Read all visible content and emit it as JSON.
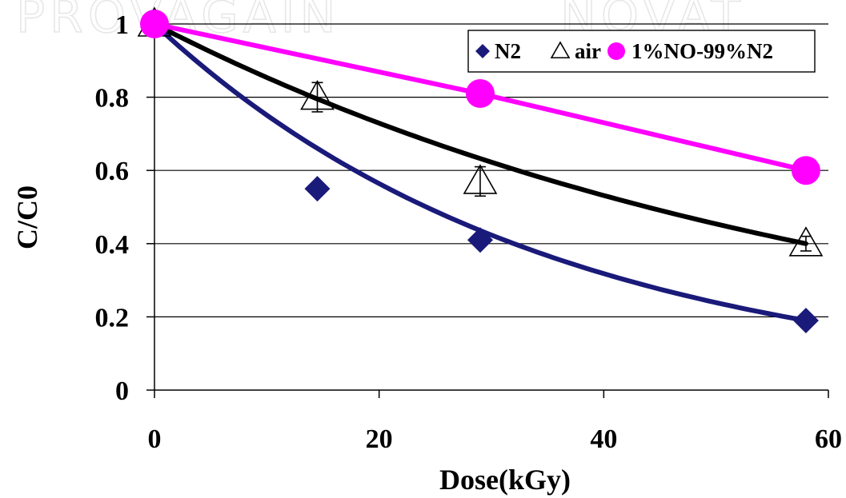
{
  "chart_data": {
    "type": "scatter",
    "title": "",
    "xlabel": "Dose(kGy)",
    "ylabel": "C/C0",
    "xlim": [
      0,
      60
    ],
    "ylim": [
      0,
      1
    ],
    "x_ticks": [
      "0",
      "20",
      "40",
      "60"
    ],
    "y_ticks": [
      "0",
      "0.2",
      "0.4",
      "0.6",
      "0.8",
      "1"
    ],
    "grid": "horizontal",
    "legend_position": "top-right",
    "series": [
      {
        "name": "N2",
        "marker": "diamond",
        "color": "#1a1a7a",
        "x": [
          0,
          14.5,
          29,
          58
        ],
        "y": [
          1.0,
          0.55,
          0.41,
          0.19
        ],
        "fit": "exponential"
      },
      {
        "name": "air",
        "marker": "open-triangle",
        "color": "#000000",
        "x": [
          0,
          14.5,
          29,
          58
        ],
        "y": [
          1.0,
          0.8,
          0.57,
          0.4
        ],
        "error": [
          0,
          0.04,
          0.04,
          0.02
        ],
        "fit": "exponential"
      },
      {
        "name": "1%NO-99%N2",
        "marker": "circle",
        "color": "#ff00ff",
        "x": [
          0,
          29,
          58
        ],
        "y": [
          1.0,
          0.81,
          0.6
        ],
        "fit": "line"
      }
    ]
  }
}
